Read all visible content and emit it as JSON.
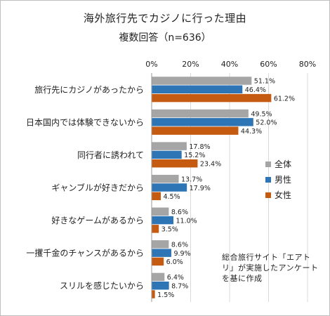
{
  "chart_data": {
    "type": "bar",
    "orientation": "horizontal",
    "title": "海外旅行先でカジノに行った理由",
    "subtitle": "複数回答（n=636）",
    "xlim": [
      0,
      80
    ],
    "x_ticks": [
      "0%",
      "20%",
      "40%",
      "60%",
      "80%"
    ],
    "grid": true,
    "categories": [
      "旅行先にカジノがあったから",
      "日本国内では体験できないから",
      "同行者に誘われて",
      "ギャンブルが好きだから",
      "好きなゲームがあるから",
      "一攫千金のチャンスがあるから",
      "スリルを感じたいから"
    ],
    "series": [
      {
        "name": "全体",
        "color": "#a5a5a5",
        "values": [
          51.1,
          49.5,
          17.8,
          13.7,
          8.6,
          8.6,
          6.4
        ],
        "labels": [
          "51.1%",
          "49.5%",
          "17.8%",
          "13.7%",
          "8.6%",
          "8.6%",
          "6.4%"
        ]
      },
      {
        "name": "男性",
        "color": "#2e75b6",
        "values": [
          46.4,
          52.0,
          15.2,
          17.9,
          11.0,
          9.9,
          8.7
        ],
        "labels": [
          "46.4%",
          "52.0%",
          "15.2%",
          "17.9%",
          "11.0%",
          "9.9%",
          "8.7%"
        ]
      },
      {
        "name": "女性",
        "color": "#c55a11",
        "values": [
          61.2,
          44.3,
          23.4,
          4.5,
          3.5,
          6.0,
          1.5
        ],
        "labels": [
          "61.2%",
          "44.3%",
          "23.4%",
          "4.5%",
          "3.5%",
          "6.0%",
          "1.5%"
        ]
      }
    ],
    "legend_position": "right",
    "note": "総合旅行サイト「エアトリ」が実施したアンケートを基に作成"
  }
}
